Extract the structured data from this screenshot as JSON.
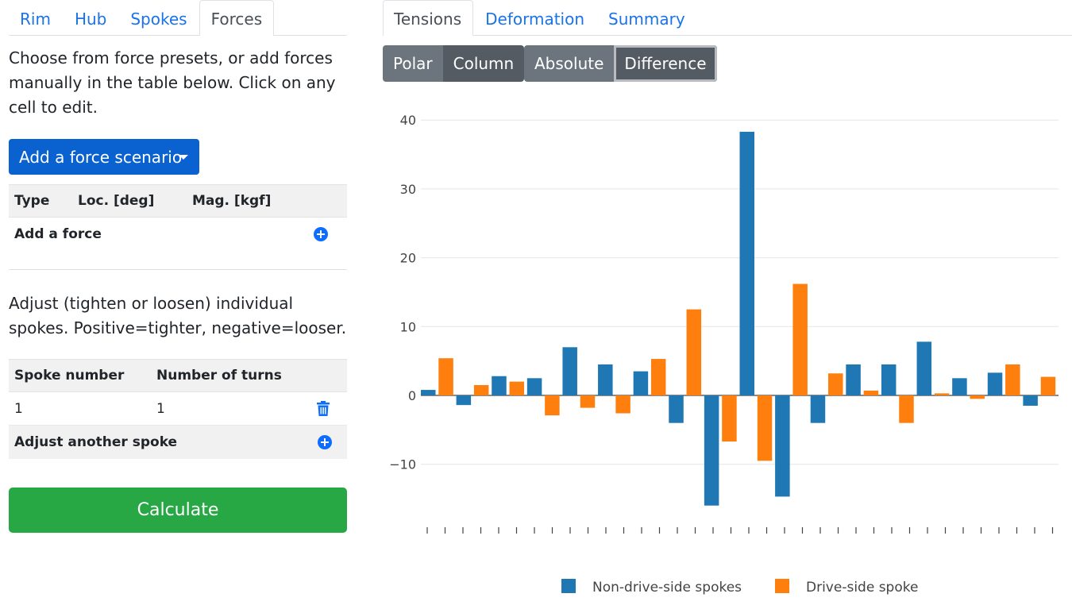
{
  "left": {
    "tabs": [
      "Rim",
      "Hub",
      "Spokes",
      "Forces"
    ],
    "active_tab": "Forces",
    "intro": "Choose from force presets, or add forces manually in the table below. Click on any cell to edit.",
    "scenario_button": "Add a force scenario",
    "forces_table": {
      "headers": [
        "Type",
        "Loc. [deg]",
        "Mag. [kgf]"
      ],
      "add_label": "Add a force"
    },
    "adjust_text": "Adjust (tighten or loosen) individual spokes. Positive=tighter, negative=looser.",
    "spokes_table": {
      "headers": [
        "Spoke number",
        "Number of turns"
      ],
      "rows": [
        {
          "spoke": "1",
          "turns": "1"
        }
      ],
      "add_label": "Adjust another spoke"
    },
    "calculate_button": "Calculate"
  },
  "right": {
    "tabs": [
      "Tensions",
      "Deformation",
      "Summary"
    ],
    "active_tab": "Tensions",
    "view_buttons": [
      "Polar",
      "Column"
    ],
    "view_active": "Column",
    "mode_buttons": [
      "Absolute",
      "Difference"
    ],
    "mode_active": "Difference"
  },
  "colors": {
    "nds": "#1f77b4",
    "ds": "#ff7f0e",
    "link": "#1a73e8",
    "primary": "#0a62d0",
    "success": "#28a745"
  },
  "chart_data": {
    "type": "bar",
    "ylim": [
      -19,
      41
    ],
    "yticks": [
      -10,
      0,
      10,
      20,
      30,
      40
    ],
    "grid": true,
    "legend_position": "bottom",
    "series": [
      {
        "name": "Non-drive-side spokes",
        "color": "#1f77b4",
        "values": [
          0.8,
          -1.4,
          2.8,
          2.5,
          7.0,
          4.5,
          3.5,
          -4.0,
          -16.0,
          38.3,
          -14.7,
          -4.0,
          4.5,
          4.5,
          7.8,
          2.5,
          3.3,
          -1.5
        ]
      },
      {
        "name": "Drive-side spoke",
        "color": "#ff7f0e",
        "values": [
          5.4,
          1.5,
          2.0,
          -2.9,
          -1.8,
          -2.6,
          5.3,
          12.5,
          -6.7,
          -9.5,
          16.2,
          3.2,
          0.7,
          -4.0,
          0.3,
          -0.5,
          4.5,
          2.7
        ]
      }
    ]
  }
}
